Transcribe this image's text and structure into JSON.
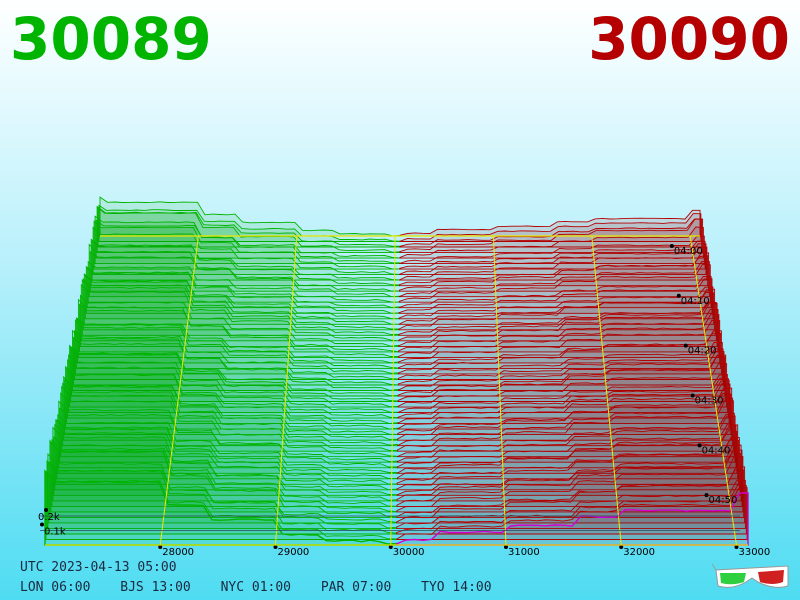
{
  "colors": {
    "bid": "#00b400",
    "ask": "#b40000",
    "grid": "#e8e800",
    "axis_text": "#000000"
  },
  "header": {
    "bid_price": "30089",
    "ask_price": "30090"
  },
  "footer": {
    "utc": "UTC 2023-04-13 05:00",
    "zones": [
      {
        "label": "LON 06:00"
      },
      {
        "label": "BJS 13:00"
      },
      {
        "label": "NYC 01:00"
      },
      {
        "label": "PAR 07:00"
      },
      {
        "label": "TYO 14:00"
      }
    ]
  },
  "icons": {
    "glasses": "3d-glasses-icon"
  },
  "chart_data": {
    "type": "area",
    "title": "",
    "xlabel": "",
    "ylabel": "",
    "x_ticks": [
      28000,
      29000,
      30000,
      31000,
      32000,
      33000
    ],
    "x_tick_labels": [
      "28000",
      "29000",
      "30000",
      "31000",
      "32000",
      "33000"
    ],
    "xlim": [
      27000,
      33100
    ],
    "depth_ticks": [
      "0.1k",
      "0.2k"
    ],
    "depth_tick_values": [
      100,
      200
    ],
    "ylim": [
      0,
      500
    ],
    "time_ticks": [
      "04:00",
      "04:10",
      "04:20",
      "04:30",
      "04:40",
      "04:50"
    ],
    "time_tick_minutes": [
      240,
      250,
      260,
      270,
      280,
      290
    ],
    "time_range_minutes": [
      238,
      300
    ],
    "series": [
      {
        "side": "bid",
        "price": [
          29900,
          29400,
          29000,
          28400,
          28000,
          27000
        ],
        "cumulative_depth": [
          20,
          60,
          150,
          240,
          380,
          440
        ]
      },
      {
        "side": "ask",
        "price": [
          30100,
          30400,
          31000,
          31600,
          32000,
          33000
        ],
        "cumulative_depth": [
          30,
          80,
          120,
          180,
          220,
          330
        ]
      }
    ]
  }
}
